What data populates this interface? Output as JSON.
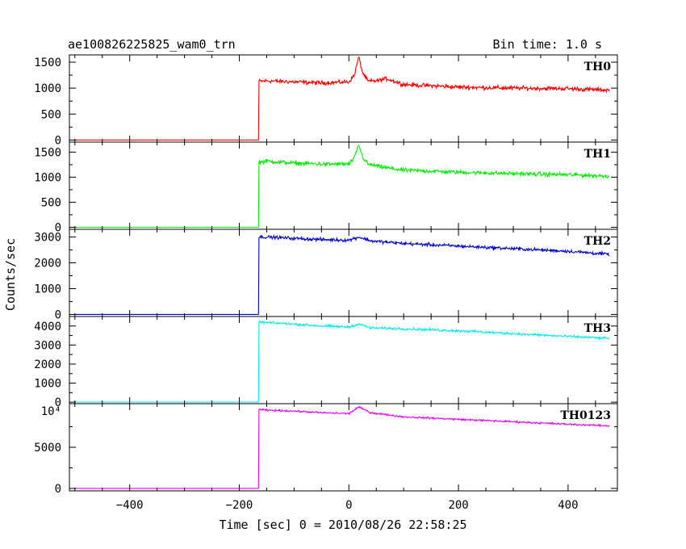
{
  "header": {
    "title": "ae100826225825_wam0_trn",
    "bin_time": "Bin time: 1.0 s"
  },
  "chart_data": {
    "type": "line",
    "xlabel": "Time [sec] 0 = 2010/08/26 22:58:25",
    "ylabel": "Counts/sec",
    "xlim": [
      -510,
      490
    ],
    "x_ticks": [
      -400,
      -200,
      0,
      200,
      400
    ],
    "x_tick_labels": [
      "−400",
      "−200",
      "0",
      "200",
      "400"
    ],
    "x_range_data": [
      -500,
      475
    ],
    "panels": [
      {
        "name": "TH0",
        "color": "#ff0000",
        "ylim": [
          -40,
          1640
        ],
        "y_ticks": [
          0,
          500,
          1000,
          1500
        ],
        "y_tick_labels": [
          "0",
          "500",
          "1000",
          "1500"
        ],
        "x": [
          -500,
          -165,
          -164,
          -150,
          -100,
          -50,
          0,
          10,
          18,
          25,
          35,
          50,
          70,
          100,
          200,
          300,
          400,
          475
        ],
        "y": [
          0,
          0,
          1130,
          1140,
          1120,
          1100,
          1120,
          1250,
          1600,
          1300,
          1130,
          1140,
          1180,
          1070,
          1020,
          1000,
          990,
          960
        ],
        "noise": 35
      },
      {
        "name": "TH1",
        "color": "#00ee00",
        "ylim": [
          -40,
          1700
        ],
        "y_ticks": [
          0,
          500,
          1000,
          1500
        ],
        "y_tick_labels": [
          "0",
          "500",
          "1000",
          "1500"
        ],
        "x": [
          -500,
          -165,
          -164,
          -150,
          -100,
          -50,
          0,
          10,
          18,
          25,
          35,
          60,
          100,
          200,
          300,
          400,
          475
        ],
        "y": [
          0,
          0,
          1300,
          1320,
          1280,
          1260,
          1260,
          1380,
          1650,
          1400,
          1260,
          1200,
          1140,
          1100,
          1070,
          1050,
          1020
        ],
        "noise": 35
      },
      {
        "name": "TH2",
        "color": "#0000cc",
        "ylim": [
          -80,
          3300
        ],
        "y_ticks": [
          0,
          1000,
          2000,
          3000
        ],
        "y_tick_labels": [
          "0",
          "1000",
          "2000",
          "3000"
        ],
        "x": [
          -500,
          -165,
          -164,
          -150,
          -100,
          -50,
          0,
          18,
          40,
          100,
          200,
          300,
          400,
          475
        ],
        "y": [
          0,
          0,
          3000,
          3000,
          2950,
          2900,
          2880,
          3000,
          2850,
          2750,
          2650,
          2550,
          2450,
          2330
        ],
        "noise": 55
      },
      {
        "name": "TH3",
        "color": "#00eeee",
        "ylim": [
          -80,
          4500
        ],
        "y_ticks": [
          0,
          1000,
          2000,
          3000,
          4000
        ],
        "y_tick_labels": [
          "0",
          "1000",
          "2000",
          "3000",
          "4000"
        ],
        "x": [
          -500,
          -165,
          -164,
          -150,
          -100,
          -50,
          0,
          18,
          40,
          100,
          200,
          300,
          400,
          475
        ],
        "y": [
          0,
          0,
          4200,
          4180,
          4100,
          4000,
          3950,
          4100,
          3900,
          3850,
          3750,
          3600,
          3450,
          3350
        ],
        "noise": 55
      },
      {
        "name": "TH0123",
        "color": "#ee00ee",
        "ylim": [
          -300,
          10300
        ],
        "y_ticks": [
          0,
          5000
        ],
        "y_tick_labels": [
          "0",
          "5000"
        ],
        "y_extra_label": "10⁴",
        "x": [
          -500,
          -165,
          -164,
          -150,
          -100,
          -50,
          0,
          18,
          40,
          100,
          200,
          300,
          400,
          475
        ],
        "y": [
          0,
          0,
          9600,
          9500,
          9400,
          9200,
          9100,
          9900,
          9200,
          8700,
          8400,
          8100,
          7800,
          7600
        ],
        "noise": 90
      }
    ]
  }
}
